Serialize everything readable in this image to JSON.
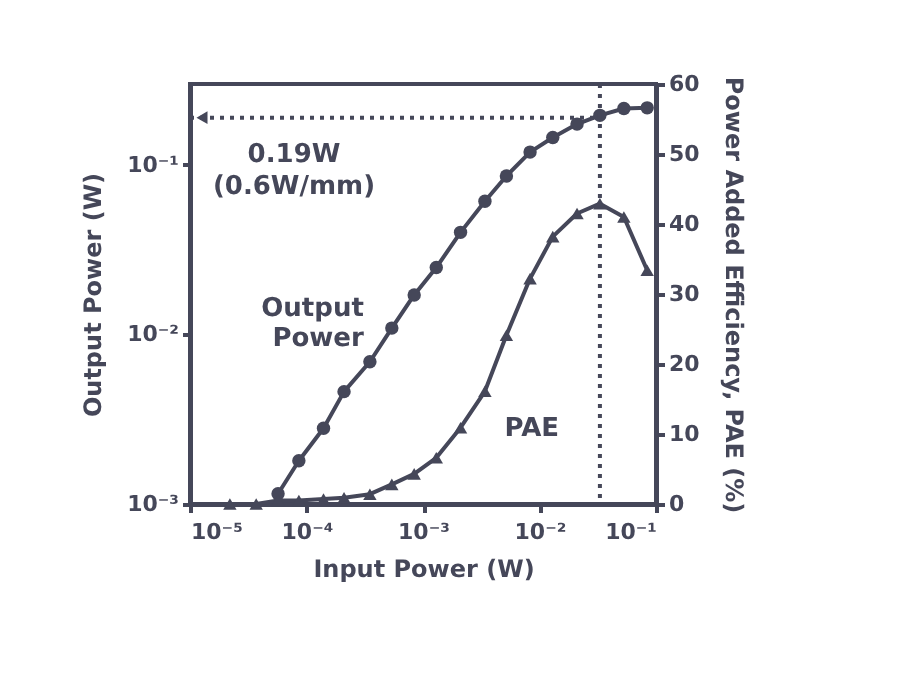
{
  "chart_data": {
    "type": "line",
    "xlabel": "Input Power  (W)",
    "ylabel": "Output Power  (W)",
    "y2label": "Power Added Efficiency, PAE (%)",
    "log": "xy",
    "grid": false,
    "xlim": [
      1e-05,
      0.1
    ],
    "xticks": [
      {
        "value": 1e-05,
        "label": "10⁻⁵"
      },
      {
        "value": 0.0001,
        "label": "10⁻⁴"
      },
      {
        "value": 0.001,
        "label": "10⁻³"
      },
      {
        "value": 0.01,
        "label": "10⁻²"
      },
      {
        "value": 0.1,
        "label": "10⁻¹"
      }
    ],
    "ylim": [
      0.001,
      0.3
    ],
    "yticks": [
      {
        "value": 0.001,
        "label": "10⁻³"
      },
      {
        "value": 0.01,
        "label": "10⁻²"
      },
      {
        "value": 0.1,
        "label": "10⁻¹"
      }
    ],
    "y2lim": [
      0,
      60
    ],
    "y2ticks": [
      0,
      10,
      20,
      30,
      40,
      50,
      60
    ],
    "series": [
      {
        "name": "Output Power",
        "color": "#454759",
        "marker": "circle",
        "x": [
          5.7e-05,
          8.6e-05,
          0.00014,
          0.00021,
          0.00035,
          0.00054,
          0.00084,
          0.0013,
          0.0021,
          0.0034,
          0.0052,
          0.0083,
          0.013,
          0.021,
          0.033,
          0.053,
          0.084
        ],
        "values": [
          0.00115,
          0.0018,
          0.0028,
          0.0046,
          0.0069,
          0.0109,
          0.0171,
          0.0248,
          0.04,
          0.061,
          0.086,
          0.119,
          0.145,
          0.174,
          0.196,
          0.215,
          0.217
        ]
      },
      {
        "name": "PAE",
        "color": "#454759",
        "marker": "triangle",
        "axis": "y2",
        "x": [
          2.2e-05,
          3.7e-05,
          5.7e-05,
          8.6e-05,
          0.00014,
          0.00021,
          0.00035,
          0.00054,
          0.00084,
          0.0013,
          0.0021,
          0.0034,
          0.0052,
          0.0083,
          0.013,
          0.021,
          0.033,
          0.053,
          0.084
        ],
        "values": [
          0,
          0,
          0.5,
          0.5,
          0.7,
          0.9,
          1.4,
          2.8,
          4.3,
          6.6,
          10.9,
          16.1,
          24.1,
          32.2,
          38.2,
          41.5,
          42.9,
          41.0,
          33.4
        ]
      }
    ],
    "ref_lines": [
      {
        "axis": "x",
        "value": 0.033,
        "line_style": "dotted",
        "color": "#454759"
      },
      {
        "axis": "y",
        "value": 0.19,
        "line_style": "dotted",
        "color": "#454759",
        "label": "0.19W (0.6W/mm)"
      }
    ]
  }
}
